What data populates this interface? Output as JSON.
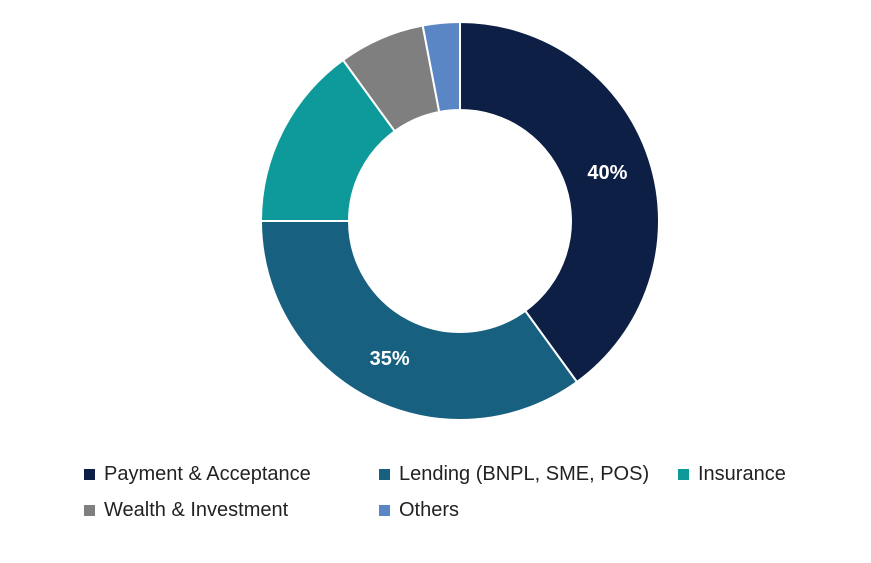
{
  "chart_data": {
    "type": "pie",
    "variant": "donut",
    "title": "",
    "categories": [
      "Payment & Acceptance",
      "Lending (BNPL, SME, POS)",
      "Insurance",
      "Wealth & Investment",
      "Others"
    ],
    "values": [
      40,
      35,
      15,
      7,
      3
    ],
    "unit": "%",
    "data_labels": [
      "40%",
      "35%",
      "",
      "",
      ""
    ],
    "colors": [
      "#0e1f45",
      "#17607f",
      "#0e9a9a",
      "#7f7f7f",
      "#5b86c5"
    ],
    "legend_position": "bottom"
  }
}
